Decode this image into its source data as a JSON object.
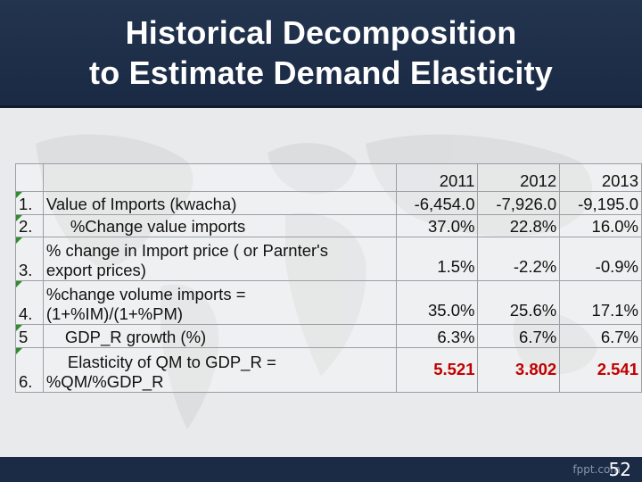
{
  "slide": {
    "title_line1": "Historical Decomposition",
    "title_line2": "to Estimate Demand Elasticity",
    "brand": "fppt.com",
    "page_number": "52"
  },
  "table": {
    "headers": [
      "2011",
      "2012",
      "2013"
    ],
    "rows": [
      {
        "num": "1.",
        "label": "Value of Imports (kwacha)",
        "values": [
          "-6,454.0",
          "-7,926.0",
          "-9,195.0"
        ]
      },
      {
        "num": "2.",
        "label": "%Change value imports",
        "values": [
          "37.0%",
          "22.8%",
          "16.0%"
        ]
      },
      {
        "num": "3.",
        "label_line1": "% change in Import price  ( or Parnter's",
        "label_line2": "export prices)",
        "values": [
          "1.5%",
          "-2.2%",
          "-0.9%"
        ]
      },
      {
        "num": "4.",
        "label_line1": "%change volume imports =",
        "label_line2": "(1+%IM)/(1+%PM)",
        "values": [
          "35.0%",
          "25.6%",
          "17.1%"
        ]
      },
      {
        "num": "5",
        "label": "GDP_R growth (%)",
        "values": [
          "6.3%",
          "6.7%",
          "6.7%"
        ]
      },
      {
        "num": "6.",
        "label_line1": "Elasticity of QM to GDP_R =",
        "label_line2": "%QM/%GDP_R",
        "values": [
          "5.521",
          "3.802",
          "2.541"
        ]
      }
    ]
  },
  "colors": {
    "header_bg": "#1f2f4a",
    "highlight": "#c00000",
    "marker": "#2f8c2f"
  }
}
